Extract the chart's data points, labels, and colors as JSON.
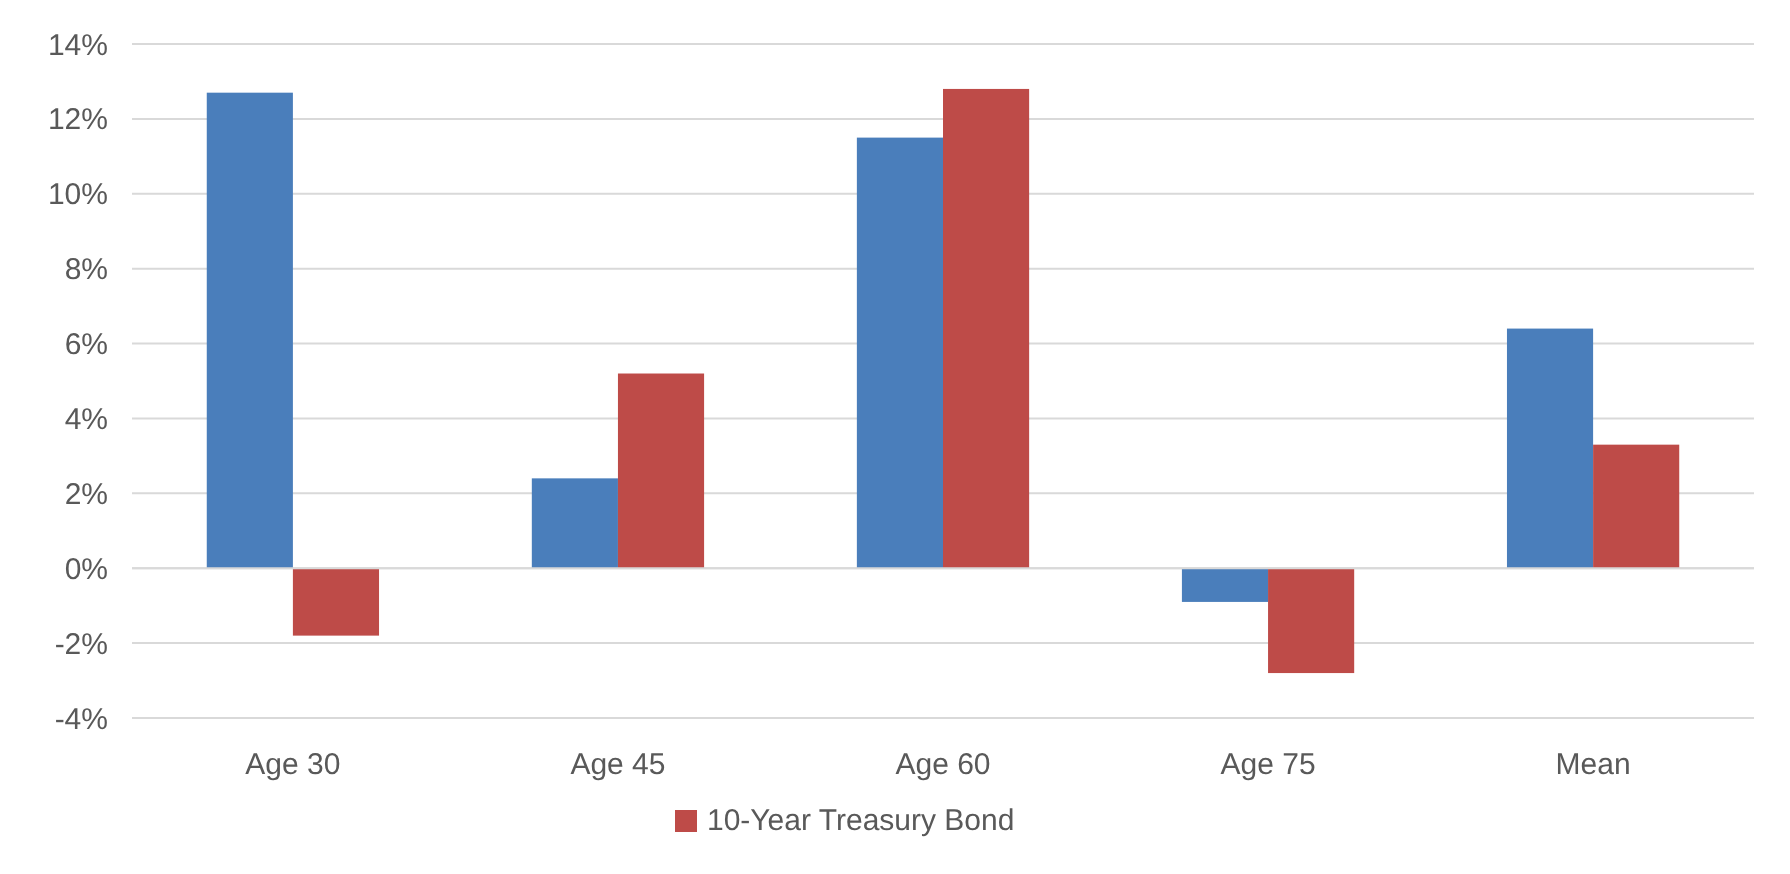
{
  "chart_data": {
    "type": "bar",
    "categories": [
      "Age 30",
      "Age 45",
      "Age 60",
      "Age 75",
      "Mean"
    ],
    "series": [
      {
        "color": "#4a7ebb",
        "values": [
          12.7,
          2.4,
          11.5,
          -0.9,
          6.4
        ]
      },
      {
        "name": "10-Year Treasury Bond",
        "color": "#be4b48",
        "values": [
          -1.8,
          5.2,
          12.8,
          -2.8,
          3.3
        ]
      }
    ],
    "ylim": [
      -4,
      14
    ],
    "yticks": [
      {
        "value": -4,
        "label": "-4%"
      },
      {
        "value": -2,
        "label": "-2%"
      },
      {
        "value": 0,
        "label": "0%"
      },
      {
        "value": 2,
        "label": "2%"
      },
      {
        "value": 4,
        "label": "4%"
      },
      {
        "value": 6,
        "label": "6%"
      },
      {
        "value": 8,
        "label": "8%"
      },
      {
        "value": 10,
        "label": "10%"
      },
      {
        "value": 12,
        "label": "12%"
      },
      {
        "value": 14,
        "label": "14%"
      }
    ],
    "grid": "y",
    "legend": "bottom"
  }
}
